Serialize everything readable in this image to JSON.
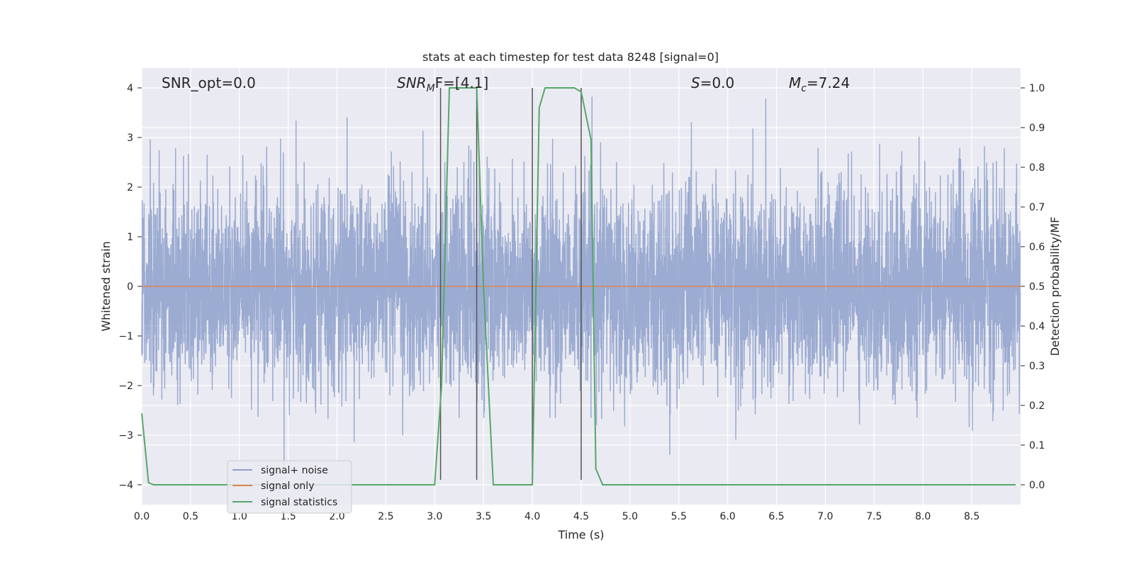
{
  "chart_data": {
    "type": "line",
    "title": "stats at each timestep for test data 8248 [signal=0]",
    "xlabel": "Time (s)",
    "ylabel": "Whitened strain",
    "y2label": "Detection probability/MF",
    "xlim": [
      0,
      9
    ],
    "ylim": [
      -4.4,
      4.4
    ],
    "y2lim": [
      -0.05,
      1.05
    ],
    "x_ticks": [
      0.0,
      0.5,
      1.0,
      1.5,
      2.0,
      2.5,
      3.0,
      3.5,
      4.0,
      4.5,
      5.0,
      5.5,
      6.0,
      6.5,
      7.0,
      7.5,
      8.0,
      8.5
    ],
    "x_tick_labels": [
      "0.0",
      "0.5",
      "1.0",
      "1.5",
      "2.0",
      "2.5",
      "3.0",
      "3.5",
      "4.0",
      "4.5",
      "5.0",
      "5.5",
      "6.0",
      "6.5",
      "7.0",
      "7.5",
      "8.0",
      "8.5"
    ],
    "y_ticks": [
      4,
      3,
      2,
      1,
      0,
      -1,
      -2,
      -3,
      -4
    ],
    "y_tick_labels": [
      "4",
      "3",
      "2",
      "1",
      "0",
      "−1",
      "−2",
      "−3",
      "−4"
    ],
    "y2_ticks": [
      1.0,
      0.9,
      0.8,
      0.7,
      0.6,
      0.5,
      0.4,
      0.3,
      0.2,
      0.1,
      0.0
    ],
    "y2_tick_labels": [
      "1.0",
      "0.9",
      "0.8",
      "0.7",
      "0.6",
      "0.5",
      "0.4",
      "0.3",
      "0.2",
      "0.1",
      "0.0"
    ],
    "grid": true,
    "legend_position": "lower-left",
    "series": [
      {
        "name": "signal+ noise",
        "color": "#8da0cb",
        "axis": "left",
        "values_description_range": [
          -3.9,
          3.95
        ]
      },
      {
        "name": "signal only",
        "color": "#dd8452",
        "axis": "left",
        "x": [
          0,
          9
        ],
        "y": [
          0,
          0
        ]
      },
      {
        "name": "signal statistics",
        "color": "#55a868",
        "axis": "right",
        "x": [
          0.0,
          0.07,
          0.12,
          0.2,
          1.0,
          2.0,
          3.0,
          3.07,
          3.15,
          3.43,
          3.5,
          3.6,
          4.0,
          4.07,
          4.13,
          4.43,
          4.5,
          4.6,
          4.65,
          4.72,
          5.0,
          6.0,
          7.0,
          8.0,
          8.95
        ],
        "y": [
          0.18,
          0.005,
          0.0,
          0.0,
          0.0,
          0.0,
          0.0,
          0.25,
          1.0,
          1.0,
          0.5,
          0.0,
          0.0,
          0.95,
          1.0,
          1.0,
          0.99,
          0.87,
          0.04,
          0.0,
          0.0,
          0.0,
          0.0,
          0.0,
          0.0
        ]
      }
    ],
    "vertical_lines": [
      3.06,
      3.43,
      4.0,
      4.5
    ],
    "vertical_line_range": [
      -3.9,
      4.0
    ],
    "annotations": [
      {
        "text_html": "SNR_opt=0.0",
        "x": 0.2,
        "y": 4.05
      },
      {
        "text_main": "SNR",
        "text_sub": "M",
        "text_tail": "F=[4.1]",
        "x": 2.6,
        "y": 4.05
      },
      {
        "text_main": "S",
        "text_tail": "=0.0",
        "x": 5.6,
        "y": 4.05
      },
      {
        "text_main": "M",
        "text_sub": "c",
        "text_tail": "=7.24",
        "x": 6.6,
        "y": 4.05
      }
    ]
  }
}
